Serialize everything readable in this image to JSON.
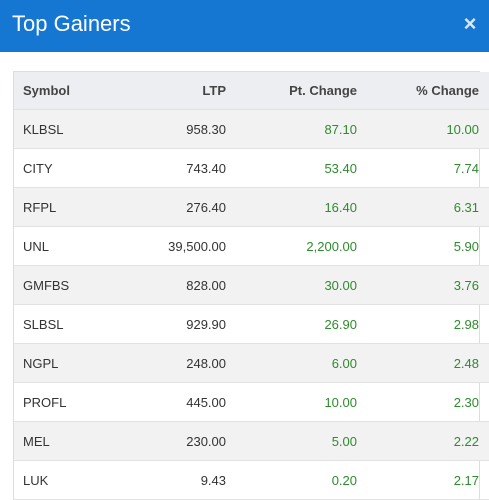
{
  "modal": {
    "title": "Top Gainers",
    "close_label": "×"
  },
  "table": {
    "headers": [
      "Symbol",
      "LTP",
      "Pt. Change",
      "% Change"
    ],
    "rows": [
      {
        "symbol": "KLBSL",
        "ltp": "958.30",
        "pt_change": "87.10",
        "pct_change": "10.00"
      },
      {
        "symbol": "CITY",
        "ltp": "743.40",
        "pt_change": "53.40",
        "pct_change": "7.74"
      },
      {
        "symbol": "RFPL",
        "ltp": "276.40",
        "pt_change": "16.40",
        "pct_change": "6.31"
      },
      {
        "symbol": "UNL",
        "ltp": "39,500.00",
        "pt_change": "2,200.00",
        "pct_change": "5.90"
      },
      {
        "symbol": "GMFBS",
        "ltp": "828.00",
        "pt_change": "30.00",
        "pct_change": "3.76"
      },
      {
        "symbol": "SLBSL",
        "ltp": "929.90",
        "pt_change": "26.90",
        "pct_change": "2.98"
      },
      {
        "symbol": "NGPL",
        "ltp": "248.00",
        "pt_change": "6.00",
        "pct_change": "2.48"
      },
      {
        "symbol": "PROFL",
        "ltp": "445.00",
        "pt_change": "10.00",
        "pct_change": "2.30"
      },
      {
        "symbol": "MEL",
        "ltp": "230.00",
        "pt_change": "5.00",
        "pct_change": "2.22"
      },
      {
        "symbol": "LUK",
        "ltp": "9.43",
        "pt_change": "0.20",
        "pct_change": "2.17"
      }
    ]
  },
  "colors": {
    "header_bg": "#1677d2",
    "positive": "#2e8b2e",
    "table_header_bg": "#edeef1"
  }
}
